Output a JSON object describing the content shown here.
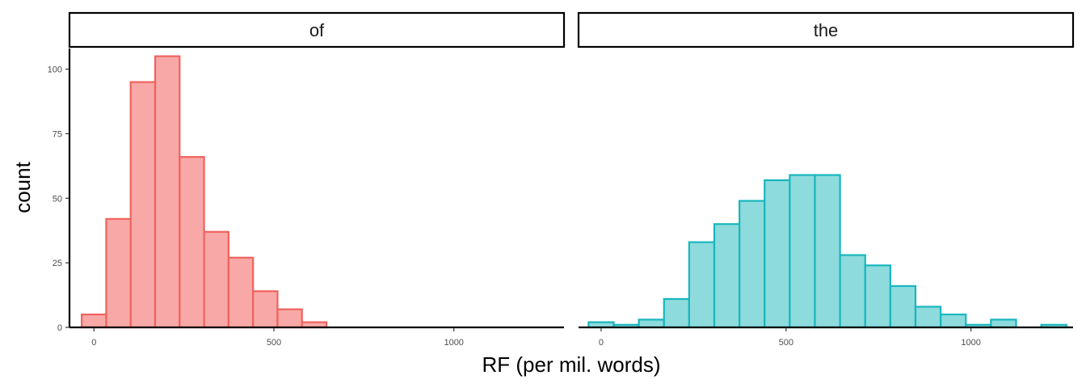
{
  "chart_data": {
    "type": "bar",
    "xlabel": "RF (per mil. words)",
    "ylabel": "count",
    "ylim": [
      0,
      108
    ],
    "y_ticks": [
      0,
      25,
      50,
      75,
      100
    ],
    "x_ticks": [
      0,
      500,
      1000
    ],
    "grid": false,
    "legend": "none",
    "panels": [
      {
        "name": "of",
        "fill": "#F8A9A7",
        "stroke": "#EF625E",
        "xlim": [
          -68,
          1306
        ],
        "bins": [
          {
            "x0": -34,
            "x1": 34,
            "count": 5
          },
          {
            "x0": 34,
            "x1": 102,
            "count": 42
          },
          {
            "x0": 102,
            "x1": 170,
            "count": 95
          },
          {
            "x0": 170,
            "x1": 238,
            "count": 105
          },
          {
            "x0": 238,
            "x1": 306,
            "count": 66
          },
          {
            "x0": 306,
            "x1": 374,
            "count": 37
          },
          {
            "x0": 374,
            "x1": 442,
            "count": 27
          },
          {
            "x0": 442,
            "x1": 510,
            "count": 14
          },
          {
            "x0": 510,
            "x1": 578,
            "count": 7
          },
          {
            "x0": 578,
            "x1": 646,
            "count": 2
          },
          {
            "x0": 646,
            "x1": 714,
            "count": 0
          },
          {
            "x0": 714,
            "x1": 782,
            "count": 0
          },
          {
            "x0": 782,
            "x1": 850,
            "count": 0
          },
          {
            "x0": 850,
            "x1": 918,
            "count": 0
          },
          {
            "x0": 918,
            "x1": 986,
            "count": 0
          },
          {
            "x0": 986,
            "x1": 1054,
            "count": 0
          },
          {
            "x0": 1054,
            "x1": 1122,
            "count": 0
          },
          {
            "x0": 1122,
            "x1": 1190,
            "count": 0
          },
          {
            "x0": 1190,
            "x1": 1258,
            "count": 0
          }
        ]
      },
      {
        "name": "the",
        "fill": "#8DDBDD",
        "stroke": "#18B6BD",
        "xlim": [
          -61,
          1276
        ],
        "bins": [
          {
            "x0": -34,
            "x1": 34,
            "count": 2
          },
          {
            "x0": 34,
            "x1": 102,
            "count": 1
          },
          {
            "x0": 102,
            "x1": 170,
            "count": 3
          },
          {
            "x0": 170,
            "x1": 238,
            "count": 11
          },
          {
            "x0": 238,
            "x1": 306,
            "count": 33
          },
          {
            "x0": 306,
            "x1": 374,
            "count": 40
          },
          {
            "x0": 374,
            "x1": 442,
            "count": 49
          },
          {
            "x0": 442,
            "x1": 510,
            "count": 57
          },
          {
            "x0": 510,
            "x1": 578,
            "count": 59
          },
          {
            "x0": 578,
            "x1": 646,
            "count": 59
          },
          {
            "x0": 646,
            "x1": 714,
            "count": 28
          },
          {
            "x0": 714,
            "x1": 782,
            "count": 24
          },
          {
            "x0": 782,
            "x1": 850,
            "count": 16
          },
          {
            "x0": 850,
            "x1": 918,
            "count": 8
          },
          {
            "x0": 918,
            "x1": 986,
            "count": 5
          },
          {
            "x0": 986,
            "x1": 1054,
            "count": 1
          },
          {
            "x0": 1054,
            "x1": 1122,
            "count": 3
          },
          {
            "x0": 1122,
            "x1": 1190,
            "count": 0
          },
          {
            "x0": 1190,
            "x1": 1258,
            "count": 1
          }
        ]
      }
    ]
  }
}
